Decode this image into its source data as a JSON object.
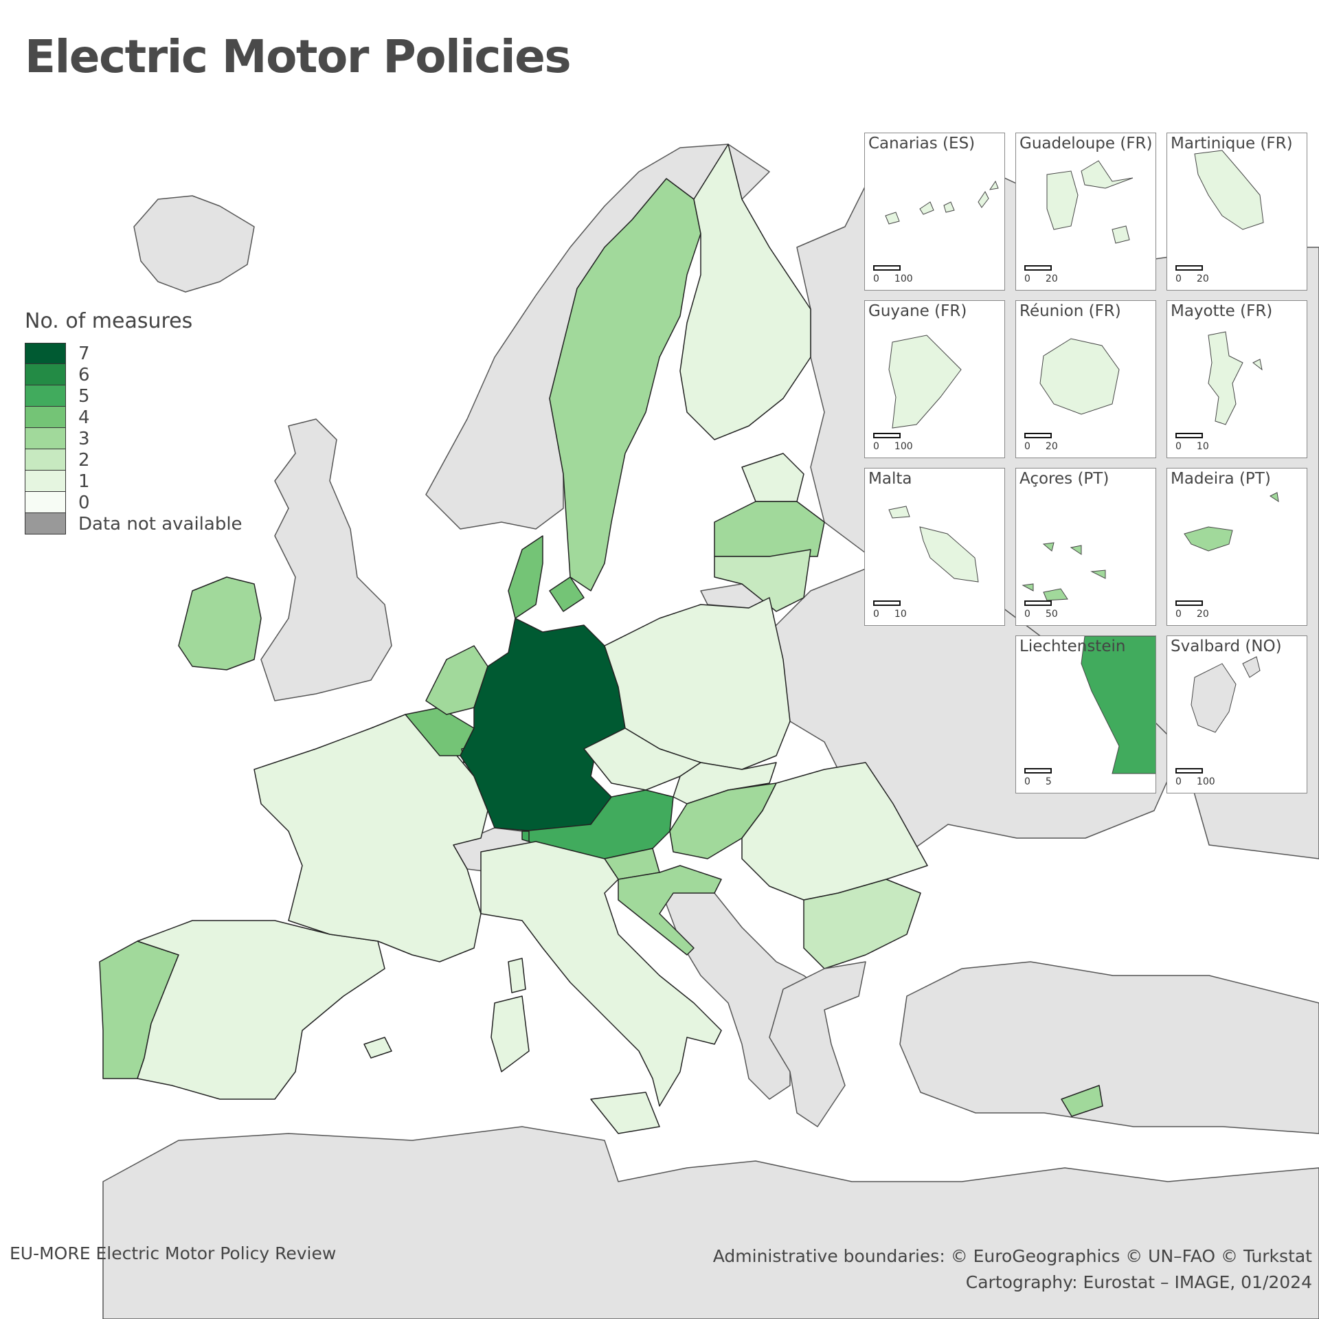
{
  "title": "Electric Motor Policies",
  "legend": {
    "title": "No. of measures",
    "items": [
      {
        "label": "7",
        "color": "#005a32"
      },
      {
        "label": "6",
        "color": "#238b45"
      },
      {
        "label": "5",
        "color": "#41ab5d"
      },
      {
        "label": "4",
        "color": "#74c476"
      },
      {
        "label": "3",
        "color": "#a1d99b"
      },
      {
        "label": "2",
        "color": "#c7e9c0"
      },
      {
        "label": "1",
        "color": "#e5f5e0"
      },
      {
        "label": "0",
        "color": "#f7fcf5"
      },
      {
        "label": "Data not available",
        "color": "#999999"
      }
    ]
  },
  "colors": {
    "non_eu": "#e3e3e3",
    "sea": "#ffffff",
    "border": "#222222"
  },
  "countries": {
    "DE": 7,
    "AT": 5,
    "LI": 5,
    "BE": 4,
    "DK": 4,
    "SE": 3,
    "IE": 3,
    "NL": 3,
    "PT": 3,
    "HU": 3,
    "LV": 3,
    "SI": 3,
    "HR": 3,
    "CY": 3,
    "LT": 2,
    "BG": 2,
    "FI": 1,
    "EE": 1,
    "PL": 1,
    "CZ": 1,
    "SK": 1,
    "FR": 1,
    "ES": 1,
    "IT": 1,
    "RO": 1,
    "LU": 1,
    "MT": 1
  },
  "insets": [
    {
      "name": "Canarias (ES)",
      "scale": [
        "0",
        "100"
      ]
    },
    {
      "name": "Guadeloupe (FR)",
      "scale": [
        "0",
        "20"
      ]
    },
    {
      "name": "Martinique (FR)",
      "scale": [
        "0",
        "20"
      ]
    },
    {
      "name": "Guyane (FR)",
      "scale": [
        "0",
        "100"
      ]
    },
    {
      "name": "Réunion (FR)",
      "scale": [
        "0",
        "20"
      ]
    },
    {
      "name": "Mayotte (FR)",
      "scale": [
        "0",
        "10"
      ]
    },
    {
      "name": "Malta",
      "scale": [
        "0",
        "10"
      ]
    },
    {
      "name": "Açores (PT)",
      "scale": [
        "0",
        "50"
      ]
    },
    {
      "name": "Madeira (PT)",
      "scale": [
        "0",
        "20"
      ]
    },
    {
      "name": "Liechtenstein",
      "scale": [
        "0",
        "5"
      ]
    },
    {
      "name": "Svalbard (NO)",
      "scale": [
        "0",
        "100"
      ]
    }
  ],
  "footer": {
    "source": "EU-MORE Electric Motor Policy Review",
    "credits": "Administrative boundaries: © EuroGeographics © UN–FAO © Turkstat",
    "cartography": "Cartography: Eurostat – IMAGE, 01/2024"
  }
}
